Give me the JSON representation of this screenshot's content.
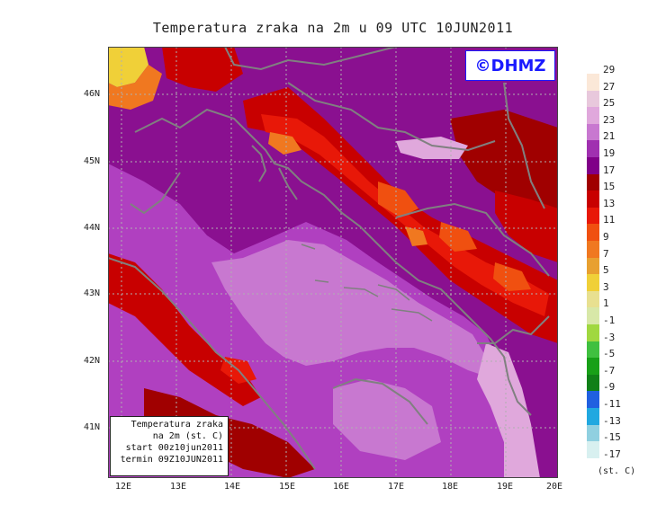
{
  "title": "Temperatura zraka na 2m u 09 UTC 10JUN2011",
  "copyright": "©DHMZ",
  "infobox": {
    "line1": "Temperatura zraka",
    "line2": "na 2m (st. C)",
    "line3": "start 00z10jun2011",
    "line4": "termin 09Z10JUN2011"
  },
  "axes": {
    "lon_labels": [
      "12E",
      "13E",
      "14E",
      "15E",
      "16E",
      "17E",
      "18E",
      "19E",
      "20E"
    ],
    "lat_labels": [
      "46N",
      "45N",
      "44N",
      "43N",
      "42N",
      "41N"
    ]
  },
  "legend": {
    "labels": [
      "29",
      "27",
      "25",
      "23",
      "21",
      "19",
      "17",
      "15",
      "13",
      "11",
      "9",
      "7",
      "5",
      "3",
      "1",
      "-1",
      "-3",
      "-5",
      "-7",
      "-9",
      "-11",
      "-13",
      "-15",
      "-17"
    ],
    "colors": [
      "#fbe8d8",
      "#e8c8dc",
      "#e0a8dc",
      "#c878d0",
      "#a030b0",
      "#800088",
      "#a00000",
      "#c80000",
      "#e81808",
      "#f05010",
      "#f07820",
      "#e8a030",
      "#f0d038",
      "#e8e090",
      "#d8e8a8",
      "#a0d840",
      "#40c040",
      "#18a018",
      "#108018",
      "#2060e0",
      "#20a8e0",
      "#90d0e0",
      "#d8f0f0"
    ],
    "unit": "(st. C)"
  },
  "map_colors": {
    "sea": "#b040c0",
    "sea_light": "#c878d0",
    "land_base": "#8a1090",
    "warm": "#c80000",
    "hot": "#e81808",
    "hotter": "#f05010",
    "orange": "#f07820",
    "yellow": "#f0d038",
    "pale": "#e0a8dc",
    "coast": "#808080",
    "grid": "#b0b0b0"
  }
}
